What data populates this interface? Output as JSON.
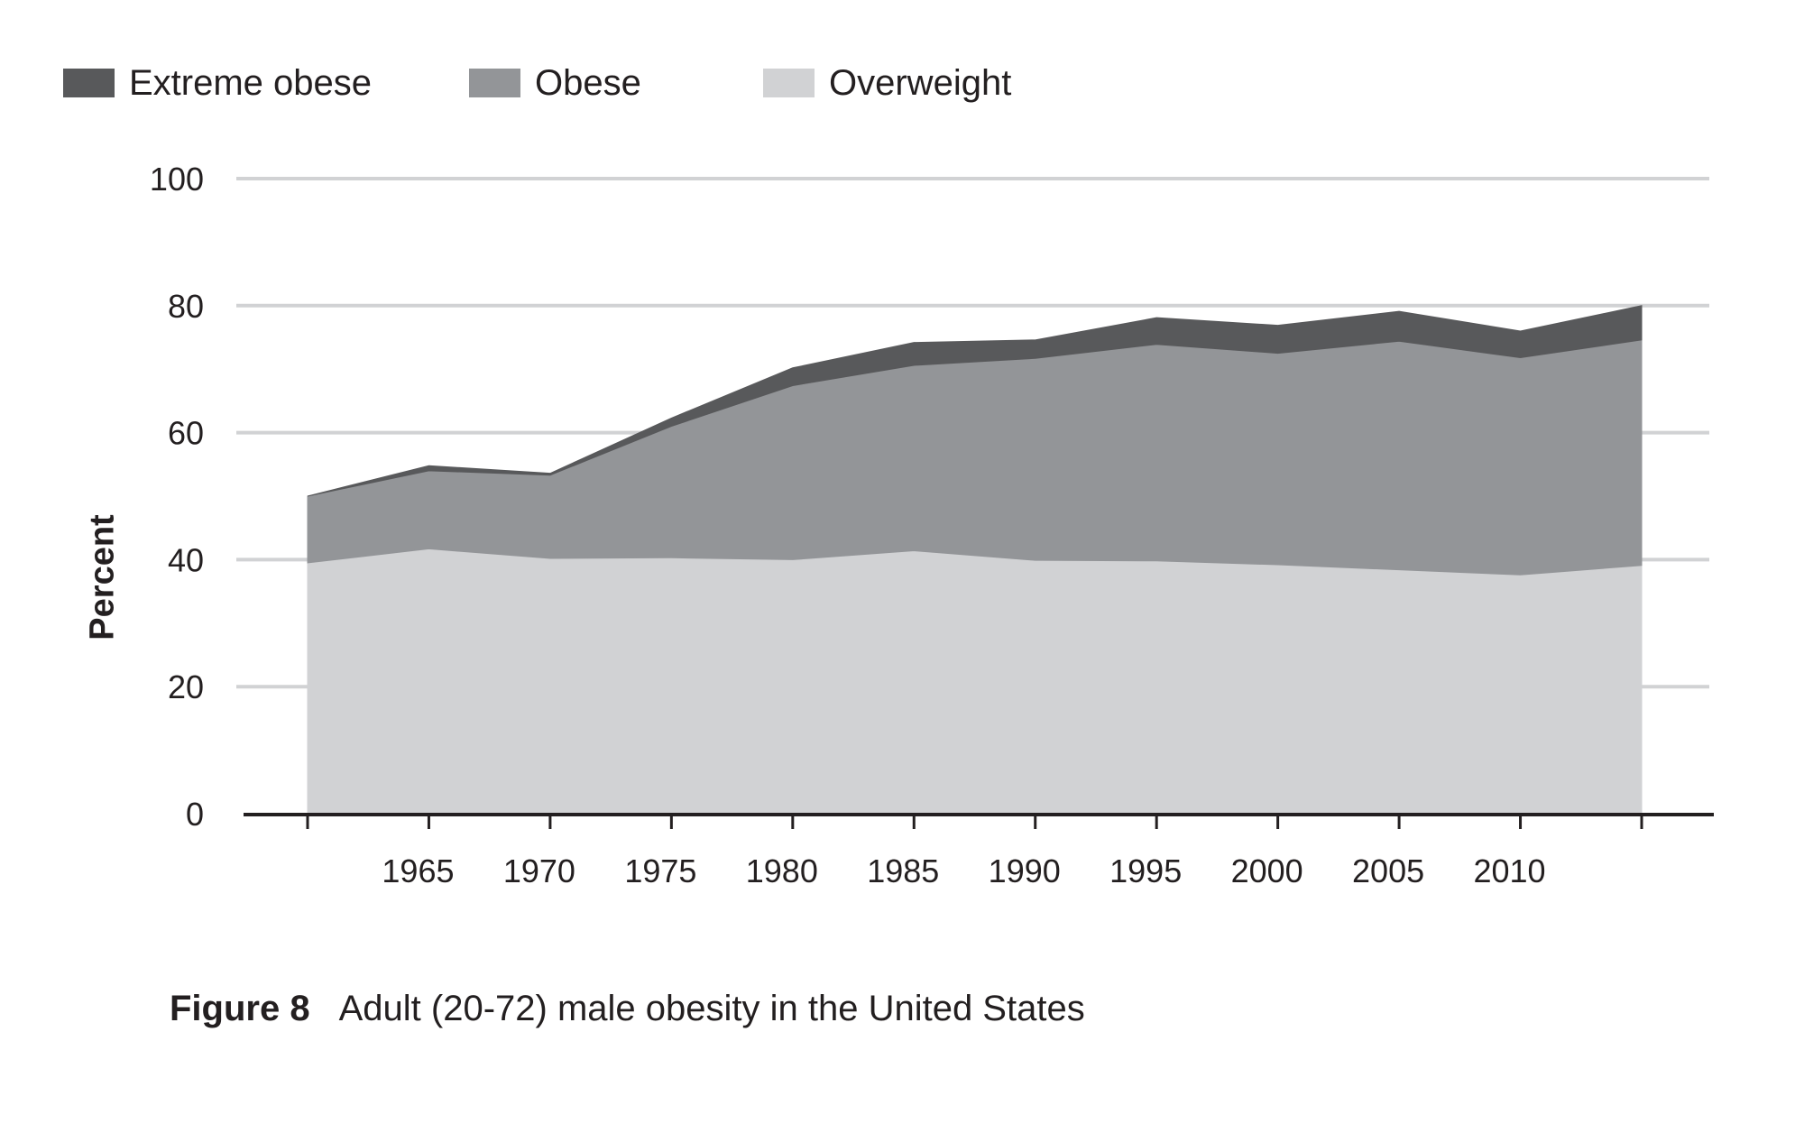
{
  "chart_data": {
    "type": "area",
    "stacked": true,
    "title": "",
    "xlabel": "",
    "ylabel": "Percent",
    "ylim": [
      0,
      100
    ],
    "yticks": [
      0,
      20,
      40,
      60,
      80,
      100
    ],
    "x": [
      1960,
      1965,
      1970,
      1975,
      1980,
      1985,
      1990,
      1995,
      2000,
      2005,
      2010,
      2015
    ],
    "xtick_labels": [
      "1965",
      "1970",
      "1975",
      "1980",
      "1985",
      "1990",
      "1995",
      "2000",
      "2005",
      "2010"
    ],
    "grid": true,
    "legend_position": "top-left",
    "series": [
      {
        "name": "Overweight",
        "color": "#d1d2d4",
        "values": [
          39.5,
          41.7,
          40.2,
          40.3,
          40.0,
          41.4,
          39.9,
          39.8,
          39.2,
          38.4,
          37.6,
          39.1
        ]
      },
      {
        "name": "Obese",
        "color": "#939598",
        "values": [
          10.5,
          12.3,
          13.1,
          20.7,
          27.4,
          29.2,
          31.8,
          34.1,
          33.3,
          36.0,
          34.2,
          35.5
        ]
      },
      {
        "name": "Extreme obese",
        "color": "#58595b",
        "values": [
          0.0,
          0.8,
          0.3,
          1.3,
          2.8,
          3.6,
          2.9,
          4.2,
          4.4,
          4.7,
          4.2,
          5.4
        ]
      }
    ]
  },
  "legend": {
    "items": [
      {
        "label": "Extreme obese",
        "color": "#58595b"
      },
      {
        "label": "Obese",
        "color": "#939598"
      },
      {
        "label": "Overweight",
        "color": "#d1d2d4"
      }
    ]
  },
  "caption": {
    "number": "Figure 8",
    "text": "Adult (20-72) male obesity in the United States"
  }
}
